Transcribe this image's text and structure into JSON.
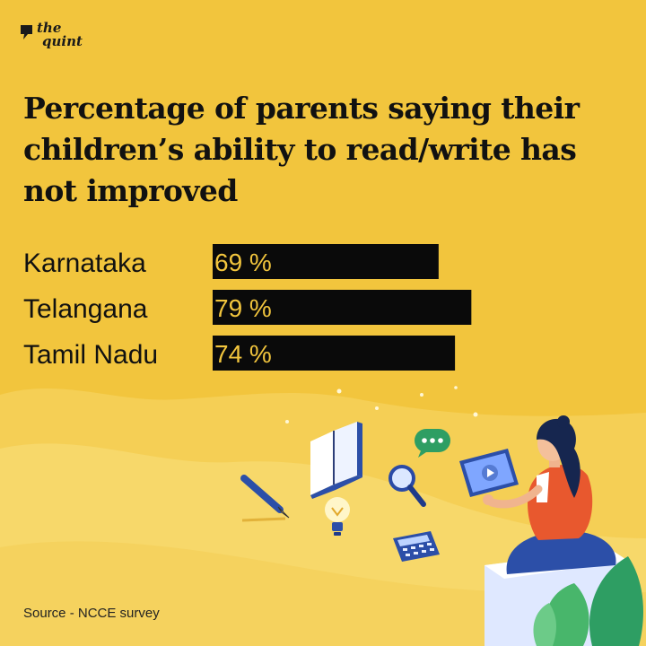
{
  "brand": {
    "line1": "the",
    "line2": "quint"
  },
  "title": "Percentage of parents saying their children’s ability to read/write has not improved",
  "source": "Source - NCCE survey",
  "colors": {
    "background": "#f2c53d",
    "bar": "#0a0a0a",
    "value_text": "#f2c53d",
    "text": "#111111"
  },
  "chart_data": {
    "type": "bar",
    "orientation": "horizontal",
    "categories": [
      "Karnataka",
      "Telangana",
      "Tamil Nadu"
    ],
    "values": [
      69,
      79,
      74
    ],
    "value_suffix": " %",
    "title": "Percentage of parents saying their children’s ability to read/write has not improved",
    "xlim": [
      0,
      100
    ],
    "grid": false
  }
}
